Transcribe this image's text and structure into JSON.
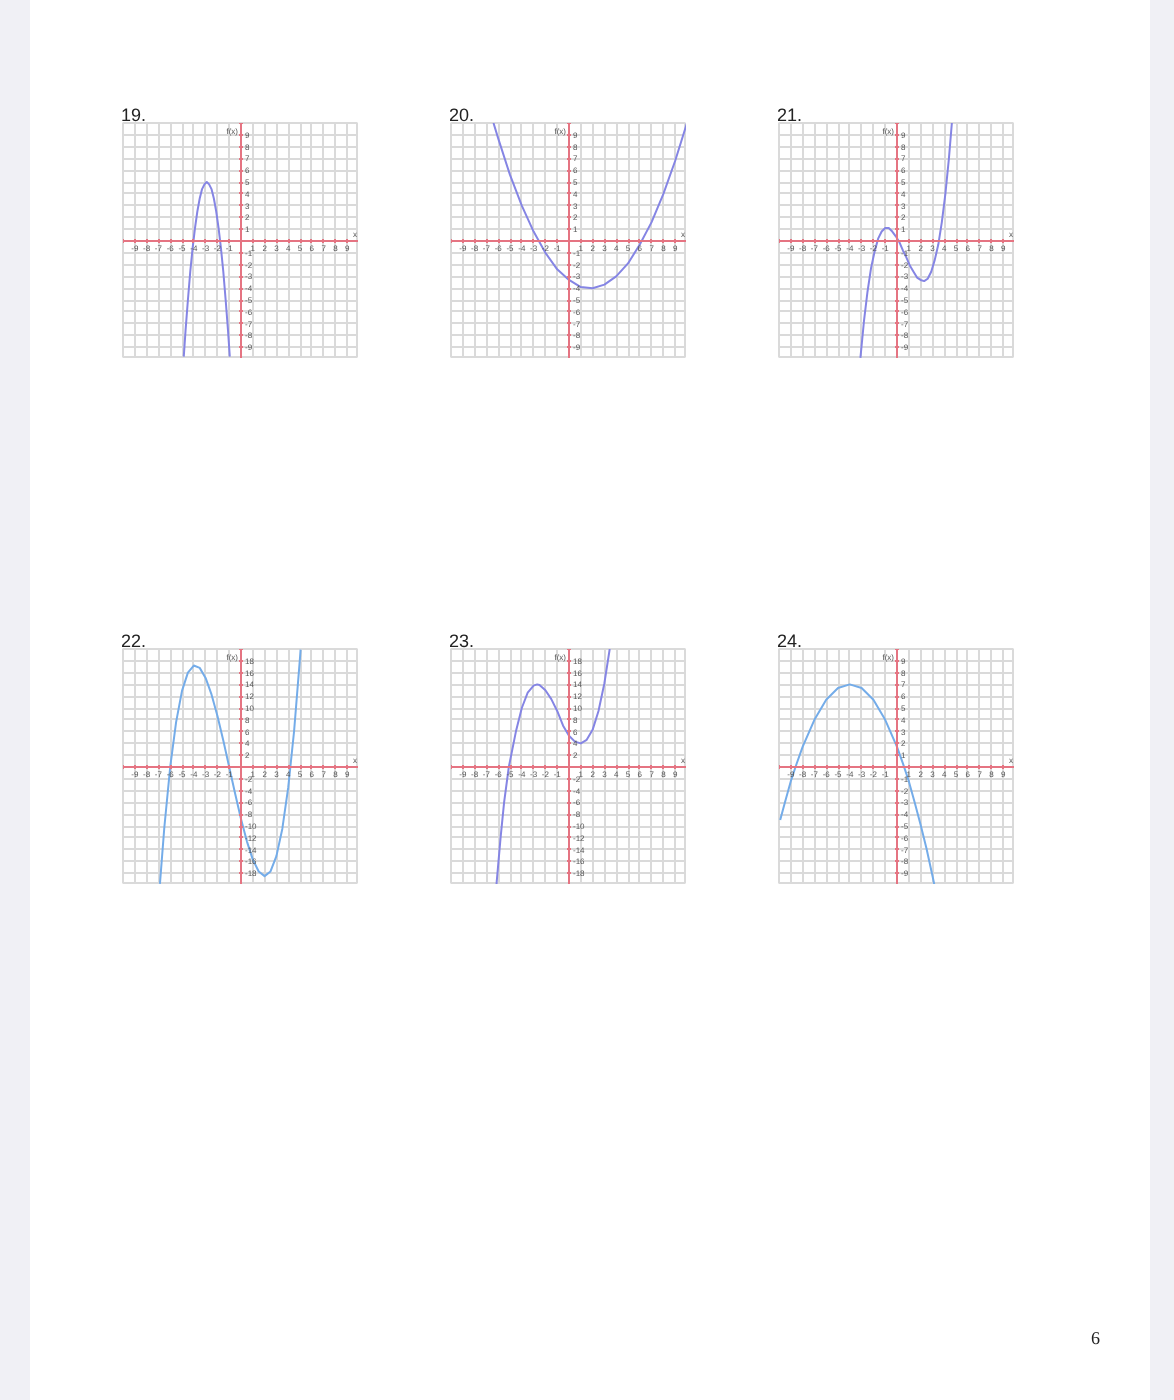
{
  "chart_data": [
    {
      "type": "line",
      "title": "19.",
      "xlabel": "x",
      "ylabel": "f(x)",
      "xlim": [
        -10,
        10
      ],
      "ylim": [
        -10,
        10
      ],
      "grid": true,
      "xticks": [
        {
          "value": -10,
          "label": null
        },
        -9,
        -8,
        -7,
        -6,
        -5,
        -4,
        -3,
        -2,
        -1,
        {
          "value": 0,
          "label": null
        },
        1,
        2,
        3,
        4,
        5,
        6,
        7,
        8,
        9,
        {
          "value": 10,
          "label": null
        }
      ],
      "yticks": [
        {
          "value": -10,
          "label": null
        },
        -9,
        -8,
        -7,
        -6,
        -5,
        -4,
        -3,
        -2,
        -1,
        {
          "value": 0,
          "label": null
        },
        1,
        2,
        3,
        4,
        5,
        6,
        7,
        8,
        9,
        {
          "value": 10,
          "label": null
        }
      ],
      "series": [
        {
          "color": "#8585e4",
          "x": [
            -4.85,
            -4.7,
            -4.5,
            -4.3,
            -4.1,
            -3.9,
            -3.7,
            -3.5,
            -3.3,
            -3.1,
            -2.9,
            -2.7,
            -2.5,
            -2.3,
            -2.1,
            -1.9,
            -1.7,
            -1.5,
            -1.3,
            -1.1,
            -0.95
          ],
          "values": [
            -9.8,
            -7.6,
            -5.0,
            -2.6,
            -0.6,
            1.1,
            2.5,
            3.6,
            4.4,
            4.8,
            5.0,
            4.8,
            4.4,
            3.6,
            2.5,
            1.1,
            -0.6,
            -2.6,
            -5.0,
            -7.6,
            -9.8
          ]
        }
      ]
    },
    {
      "type": "line",
      "title": "20.",
      "xlabel": "x",
      "ylabel": "f(x)",
      "xlim": [
        -10,
        10
      ],
      "ylim": [
        -10,
        10
      ],
      "grid": true,
      "xticks": [
        {
          "value": -10,
          "label": null
        },
        -9,
        -8,
        -7,
        -6,
        -5,
        -4,
        -3,
        -2,
        -1,
        {
          "value": 0,
          "label": null
        },
        1,
        2,
        3,
        4,
        5,
        6,
        7,
        8,
        9,
        {
          "value": 10,
          "label": null
        }
      ],
      "yticks": [
        {
          "value": -10,
          "label": null
        },
        -9,
        -8,
        -7,
        -6,
        -5,
        -4,
        -3,
        -2,
        -1,
        {
          "value": 0,
          "label": null
        },
        1,
        2,
        3,
        4,
        5,
        6,
        7,
        8,
        9,
        {
          "value": 10,
          "label": null
        }
      ],
      "series": [
        {
          "color": "#8585e4",
          "x": [
            -6.4,
            -6,
            -5,
            -4,
            -3,
            -2,
            -1,
            0,
            1,
            2,
            3,
            4,
            5,
            6,
            7,
            8,
            9,
            10
          ],
          "values": [
            10.0,
            8.7,
            5.6,
            3.0,
            0.8,
            -1.0,
            -2.4,
            -3.3,
            -3.9,
            -4.0,
            -3.7,
            -3.0,
            -1.9,
            -0.3,
            1.6,
            4.0,
            6.8,
            10.0
          ]
        }
      ]
    },
    {
      "type": "line",
      "title": "21.",
      "xlabel": "x",
      "ylabel": "f(x)",
      "xlim": [
        -10,
        10
      ],
      "ylim": [
        -10,
        10
      ],
      "grid": true,
      "xticks": [
        {
          "value": -10,
          "label": null
        },
        -9,
        -8,
        -7,
        -6,
        -5,
        -4,
        -3,
        -2,
        -1,
        {
          "value": 0,
          "label": null
        },
        1,
        2,
        3,
        4,
        5,
        6,
        7,
        8,
        9,
        {
          "value": 10,
          "label": null
        }
      ],
      "yticks": [
        {
          "value": -10,
          "label": null
        },
        -9,
        -8,
        -7,
        -6,
        -5,
        -4,
        -3,
        -2,
        -1,
        {
          "value": 0,
          "label": null
        },
        1,
        2,
        3,
        4,
        5,
        6,
        7,
        8,
        9,
        {
          "value": 10,
          "label": null
        }
      ],
      "series": [
        {
          "color": "#8585e4",
          "x": [
            -3.1,
            -2.8,
            -2.5,
            -2.2,
            -1.9,
            -1.6,
            -1.3,
            -1.0,
            -0.7,
            -0.4,
            -0.1,
            0.2,
            0.5,
            0.8,
            1.1,
            1.4,
            1.7,
            2.0,
            2.3,
            2.6,
            2.9,
            3.2,
            3.5,
            3.8,
            4.1,
            4.4,
            4.65
          ],
          "values": [
            -9.9,
            -6.8,
            -4.3,
            -2.3,
            -0.9,
            0.2,
            0.8,
            1.1,
            1.1,
            0.8,
            0.4,
            -0.1,
            -0.8,
            -1.4,
            -2.1,
            -2.6,
            -3.1,
            -3.3,
            -3.4,
            -3.2,
            -2.6,
            -1.6,
            -0.3,
            1.6,
            4.0,
            7.0,
            10.0
          ]
        }
      ]
    },
    {
      "type": "line",
      "title": "22.",
      "xlabel": "x",
      "ylabel": "f(x)",
      "xlim": [
        -10,
        10
      ],
      "ylim": [
        -20,
        20
      ],
      "grid": true,
      "xticks": [
        {
          "value": -10,
          "label": null
        },
        -9,
        -8,
        -7,
        -6,
        -5,
        -4,
        -3,
        -2,
        -1,
        {
          "value": 0,
          "label": null
        },
        1,
        2,
        3,
        4,
        5,
        6,
        7,
        8,
        9,
        {
          "value": 10,
          "label": null
        }
      ],
      "yticks": [
        {
          "value": -20,
          "label": null
        },
        -18,
        -16,
        -14,
        -12,
        -10,
        -8,
        -6,
        -4,
        -2,
        {
          "value": 0,
          "label": null
        },
        2,
        4,
        6,
        8,
        10,
        12,
        14,
        16,
        18,
        {
          "value": 20,
          "label": null
        }
      ],
      "series": [
        {
          "color": "#74ace9",
          "x": [
            -6.87,
            -6.5,
            -6,
            -5.5,
            -5,
            -4.5,
            -4,
            -3.5,
            -3,
            -2.5,
            -2,
            -1.5,
            -1,
            -0.5,
            0,
            0.5,
            1,
            1.5,
            2,
            2.5,
            3,
            3.5,
            4,
            4.5,
            5,
            5.05
          ],
          "values": [
            -19.8,
            -10.3,
            0,
            7.6,
            12.9,
            16.0,
            17.2,
            16.8,
            15.1,
            12.3,
            8.7,
            4.5,
            0,
            -4.5,
            -8.8,
            -12.6,
            -15.7,
            -17.7,
            -18.5,
            -17.7,
            -15.1,
            -10.5,
            -3.5,
            6.1,
            18.5,
            19.9
          ]
        }
      ]
    },
    {
      "type": "line",
      "title": "23.",
      "xlabel": "x",
      "ylabel": "f(x)",
      "xlim": [
        -10,
        10
      ],
      "ylim": [
        -20,
        20
      ],
      "grid": true,
      "xticks": [
        {
          "value": -10,
          "label": null
        },
        -9,
        -8,
        -7,
        -6,
        -5,
        -4,
        -3,
        -2,
        -1,
        {
          "value": 0,
          "label": null
        },
        1,
        2,
        3,
        4,
        5,
        6,
        7,
        8,
        9,
        {
          "value": 10,
          "label": null
        }
      ],
      "yticks": [
        {
          "value": -20,
          "label": null
        },
        -18,
        -16,
        -14,
        -12,
        -10,
        -8,
        -6,
        -4,
        -2,
        {
          "value": 0,
          "label": null
        },
        2,
        4,
        6,
        8,
        10,
        12,
        14,
        16,
        18,
        {
          "value": 20,
          "label": null
        }
      ],
      "series": [
        {
          "color": "#8585e4",
          "x": [
            -6.15,
            -5.8,
            -5.5,
            -5.1,
            -4.5,
            -4,
            -3.5,
            -3,
            -2.7,
            -2.5,
            -2,
            -1.5,
            -1,
            -0.5,
            0,
            0.5,
            1,
            1.5,
            2,
            2.5,
            3,
            3.45
          ],
          "values": [
            -20,
            -12,
            -6,
            0,
            6,
            10,
            12.6,
            13.8,
            14,
            13.9,
            13,
            11.5,
            9.5,
            7,
            5.3,
            4.3,
            4,
            4.6,
            6.3,
            9.5,
            14.2,
            20
          ]
        }
      ]
    },
    {
      "type": "line",
      "title": "24.",
      "xlabel": "x",
      "ylabel": "f(x)",
      "xlim": [
        -10,
        10
      ],
      "ylim": [
        -10,
        10
      ],
      "grid": true,
      "xticks": [
        {
          "value": -10,
          "label": null
        },
        -9,
        -8,
        -7,
        -6,
        -5,
        -4,
        -3,
        -2,
        -1,
        {
          "value": 0,
          "label": null
        },
        1,
        2,
        3,
        4,
        5,
        6,
        7,
        8,
        9,
        {
          "value": 10,
          "label": null
        }
      ],
      "yticks": [
        {
          "value": -10,
          "label": null
        },
        -9,
        -8,
        -7,
        -6,
        -5,
        -4,
        -3,
        -2,
        -1,
        {
          "value": 0,
          "label": null
        },
        1,
        2,
        3,
        4,
        5,
        6,
        7,
        8,
        9,
        {
          "value": 10,
          "label": null
        }
      ],
      "annotations": [
        "6"
      ],
      "series": [
        {
          "color": "#74ace9",
          "x": [
            -9.9,
            -9.5,
            -9,
            -8.5,
            -8,
            -7,
            -6,
            -5,
            -4,
            -3,
            -2,
            -1,
            0,
            0.5,
            1,
            1.5,
            2,
            2.5,
            3,
            3.17
          ],
          "values": [
            -4.5,
            -3.0,
            -1.2,
            0.3,
            1.7,
            4.0,
            5.7,
            6.7,
            7,
            6.7,
            5.7,
            4.0,
            1.7,
            0.3,
            -1.2,
            -3.0,
            -4.9,
            -6.9,
            -9.2,
            -10.0
          ]
        }
      ]
    }
  ]
}
